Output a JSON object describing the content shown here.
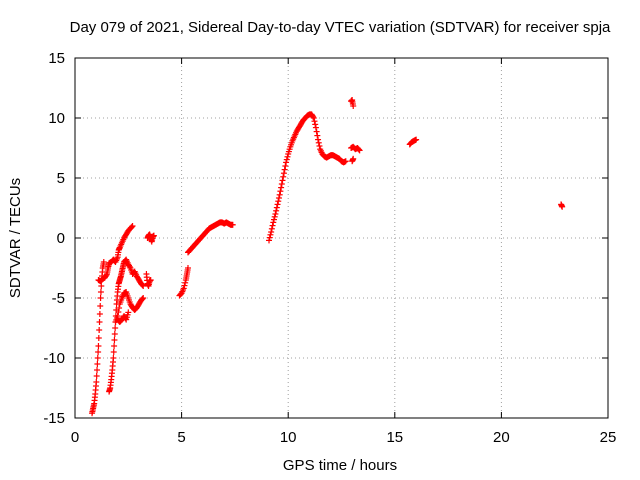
{
  "chart_data": {
    "type": "scatter",
    "title": "Day 079 of 2021, Sidereal Day-to-day VTEC variation (SDTVAR) for receiver spja",
    "xlabel": "GPS time / hours",
    "ylabel": "SDTVAR / TECUs",
    "xlim": [
      0,
      25
    ],
    "ylim": [
      -15,
      15
    ],
    "x_ticks": [
      0,
      5,
      10,
      15,
      20,
      25
    ],
    "y_ticks": [
      -15,
      -10,
      -5,
      0,
      5,
      10,
      15
    ],
    "x_tick_labels": [
      "0",
      "5",
      "10",
      "15",
      "20",
      "25"
    ],
    "y_tick_labels": [
      "-15",
      "-10",
      "-5",
      "0",
      "5",
      "10",
      "15"
    ],
    "grid": true,
    "marker": "plus",
    "color": "#ff0000",
    "series": [
      {
        "segments": [
          [
            [
              0.8,
              -14.6
            ],
            [
              0.85,
              -14.2
            ],
            [
              0.9,
              -13.8
            ],
            [
              0.95,
              -13.0
            ],
            [
              1.0,
              -12.0
            ],
            [
              1.05,
              -10.5
            ],
            [
              1.1,
              -9.0
            ],
            [
              1.15,
              -7.0
            ],
            [
              1.2,
              -5.0
            ],
            [
              1.25,
              -3.5
            ],
            [
              1.3,
              -2.5
            ],
            [
              1.35,
              -2.0
            ]
          ],
          [
            [
              1.1,
              -3.5
            ],
            [
              1.2,
              -3.6
            ],
            [
              1.3,
              -3.4
            ],
            [
              1.4,
              -3.3
            ],
            [
              1.5,
              -3.0
            ],
            [
              1.55,
              -2.5
            ],
            [
              1.6,
              -2.1
            ],
            [
              1.7,
              -2.0
            ],
            [
              1.8,
              -1.8
            ],
            [
              1.9,
              -2.0
            ],
            [
              2.0,
              -1.6
            ],
            [
              2.05,
              -1.0
            ],
            [
              2.1,
              -0.8
            ],
            [
              2.2,
              -0.4
            ],
            [
              2.3,
              0.0
            ],
            [
              2.4,
              0.3
            ],
            [
              2.5,
              0.6
            ],
            [
              2.6,
              0.8
            ],
            [
              2.7,
              1.0
            ]
          ],
          [
            [
              1.6,
              -12.8
            ],
            [
              1.65,
              -12.5
            ],
            [
              1.7,
              -11.8
            ],
            [
              1.75,
              -11.0
            ],
            [
              1.8,
              -10.0
            ],
            [
              1.85,
              -8.5
            ],
            [
              1.9,
              -7.0
            ],
            [
              1.95,
              -5.5
            ],
            [
              2.0,
              -4.5
            ],
            [
              2.05,
              -3.8
            ],
            [
              2.1,
              -3.5
            ],
            [
              2.15,
              -3.2
            ],
            [
              2.2,
              -2.8
            ],
            [
              2.25,
              -2.4
            ],
            [
              2.3,
              -2.0
            ],
            [
              2.4,
              -1.8
            ],
            [
              2.5,
              -2.2
            ],
            [
              2.6,
              -2.5
            ],
            [
              2.7,
              -3.0
            ],
            [
              2.8,
              -2.8
            ],
            [
              2.9,
              -3.2
            ],
            [
              3.0,
              -3.5
            ],
            [
              3.1,
              -3.8
            ],
            [
              3.2,
              -4.0
            ]
          ],
          [
            [
              1.9,
              -7.0
            ],
            [
              2.0,
              -6.5
            ],
            [
              2.1,
              -5.5
            ],
            [
              2.2,
              -5.0
            ],
            [
              2.3,
              -4.6
            ],
            [
              2.4,
              -4.5
            ],
            [
              2.5,
              -5.0
            ],
            [
              2.6,
              -5.5
            ],
            [
              2.7,
              -5.8
            ],
            [
              2.8,
              -6.0
            ],
            [
              2.9,
              -5.8
            ],
            [
              3.0,
              -5.5
            ],
            [
              3.1,
              -5.2
            ],
            [
              3.2,
              -5.0
            ]
          ],
          [
            [
              2.0,
              -6.8
            ],
            [
              2.1,
              -7.0
            ],
            [
              2.2,
              -6.8
            ],
            [
              2.3,
              -6.5
            ],
            [
              2.4,
              -6.8
            ],
            [
              2.5,
              -6.2
            ]
          ],
          [
            [
              3.35,
              -3.0
            ],
            [
              3.4,
              -3.8
            ],
            [
              3.45,
              -4.0
            ],
            [
              3.5,
              -3.6
            ],
            [
              3.55,
              -3.5
            ]
          ],
          [
            [
              3.4,
              0.0
            ],
            [
              3.45,
              0.2
            ],
            [
              3.5,
              0.3
            ],
            [
              3.55,
              0.0
            ],
            [
              3.6,
              -0.3
            ],
            [
              3.65,
              0.1
            ],
            [
              3.7,
              0.2
            ]
          ],
          [
            [
              4.9,
              -4.8
            ],
            [
              5.0,
              -4.6
            ],
            [
              5.1,
              -4.2
            ],
            [
              5.2,
              -3.5
            ],
            [
              5.25,
              -3.0
            ],
            [
              5.3,
              -2.5
            ]
          ],
          [
            [
              5.3,
              -1.2
            ],
            [
              5.4,
              -1.0
            ],
            [
              5.5,
              -0.8
            ],
            [
              5.6,
              -0.6
            ],
            [
              5.7,
              -0.4
            ],
            [
              5.8,
              -0.2
            ],
            [
              5.9,
              0.0
            ],
            [
              6.0,
              0.2
            ],
            [
              6.1,
              0.4
            ],
            [
              6.2,
              0.6
            ],
            [
              6.3,
              0.8
            ],
            [
              6.4,
              0.9
            ],
            [
              6.5,
              1.0
            ],
            [
              6.6,
              1.1
            ],
            [
              6.7,
              1.2
            ],
            [
              6.8,
              1.3
            ],
            [
              6.9,
              1.3
            ],
            [
              7.0,
              1.2
            ],
            [
              7.1,
              1.3
            ],
            [
              7.2,
              1.2
            ],
            [
              7.3,
              1.1
            ],
            [
              7.4,
              1.1
            ]
          ],
          [
            [
              9.1,
              -0.2
            ],
            [
              9.2,
              0.5
            ],
            [
              9.3,
              1.3
            ],
            [
              9.4,
              2.0
            ],
            [
              9.5,
              2.8
            ],
            [
              9.6,
              3.6
            ],
            [
              9.7,
              4.5
            ],
            [
              9.8,
              5.4
            ],
            [
              9.9,
              6.3
            ],
            [
              10.0,
              7.0
            ],
            [
              10.1,
              7.6
            ],
            [
              10.2,
              8.1
            ],
            [
              10.3,
              8.5
            ],
            [
              10.4,
              8.9
            ],
            [
              10.5,
              9.2
            ],
            [
              10.6,
              9.5
            ],
            [
              10.7,
              9.8
            ],
            [
              10.8,
              10.0
            ],
            [
              10.9,
              10.2
            ],
            [
              11.0,
              10.3
            ],
            [
              11.1,
              10.3
            ],
            [
              11.2,
              10.0
            ],
            [
              11.3,
              9.2
            ],
            [
              11.4,
              8.2
            ],
            [
              11.5,
              7.4
            ],
            [
              11.6,
              7.0
            ],
            [
              11.7,
              6.8
            ],
            [
              11.8,
              6.7
            ],
            [
              11.9,
              6.8
            ],
            [
              12.0,
              6.9
            ],
            [
              12.1,
              6.9
            ],
            [
              12.2,
              6.8
            ],
            [
              12.3,
              6.7
            ],
            [
              12.4,
              6.6
            ],
            [
              12.5,
              6.4
            ],
            [
              12.6,
              6.3
            ],
            [
              12.7,
              6.4
            ]
          ],
          [
            [
              12.95,
              7.5
            ],
            [
              13.05,
              7.6
            ],
            [
              13.15,
              7.4
            ],
            [
              13.25,
              7.5
            ],
            [
              13.35,
              7.3
            ]
          ],
          [
            [
              13.0,
              6.4
            ],
            [
              13.05,
              6.6
            ]
          ],
          [
            [
              12.95,
              11.4
            ],
            [
              13.0,
              11.5
            ],
            [
              13.05,
              11.0
            ]
          ],
          [
            [
              15.7,
              7.8
            ],
            [
              15.8,
              8.0
            ],
            [
              15.9,
              8.1
            ],
            [
              16.0,
              8.2
            ]
          ],
          [
            [
              22.8,
              2.8
            ],
            [
              22.85,
              2.6
            ]
          ]
        ]
      }
    ]
  }
}
